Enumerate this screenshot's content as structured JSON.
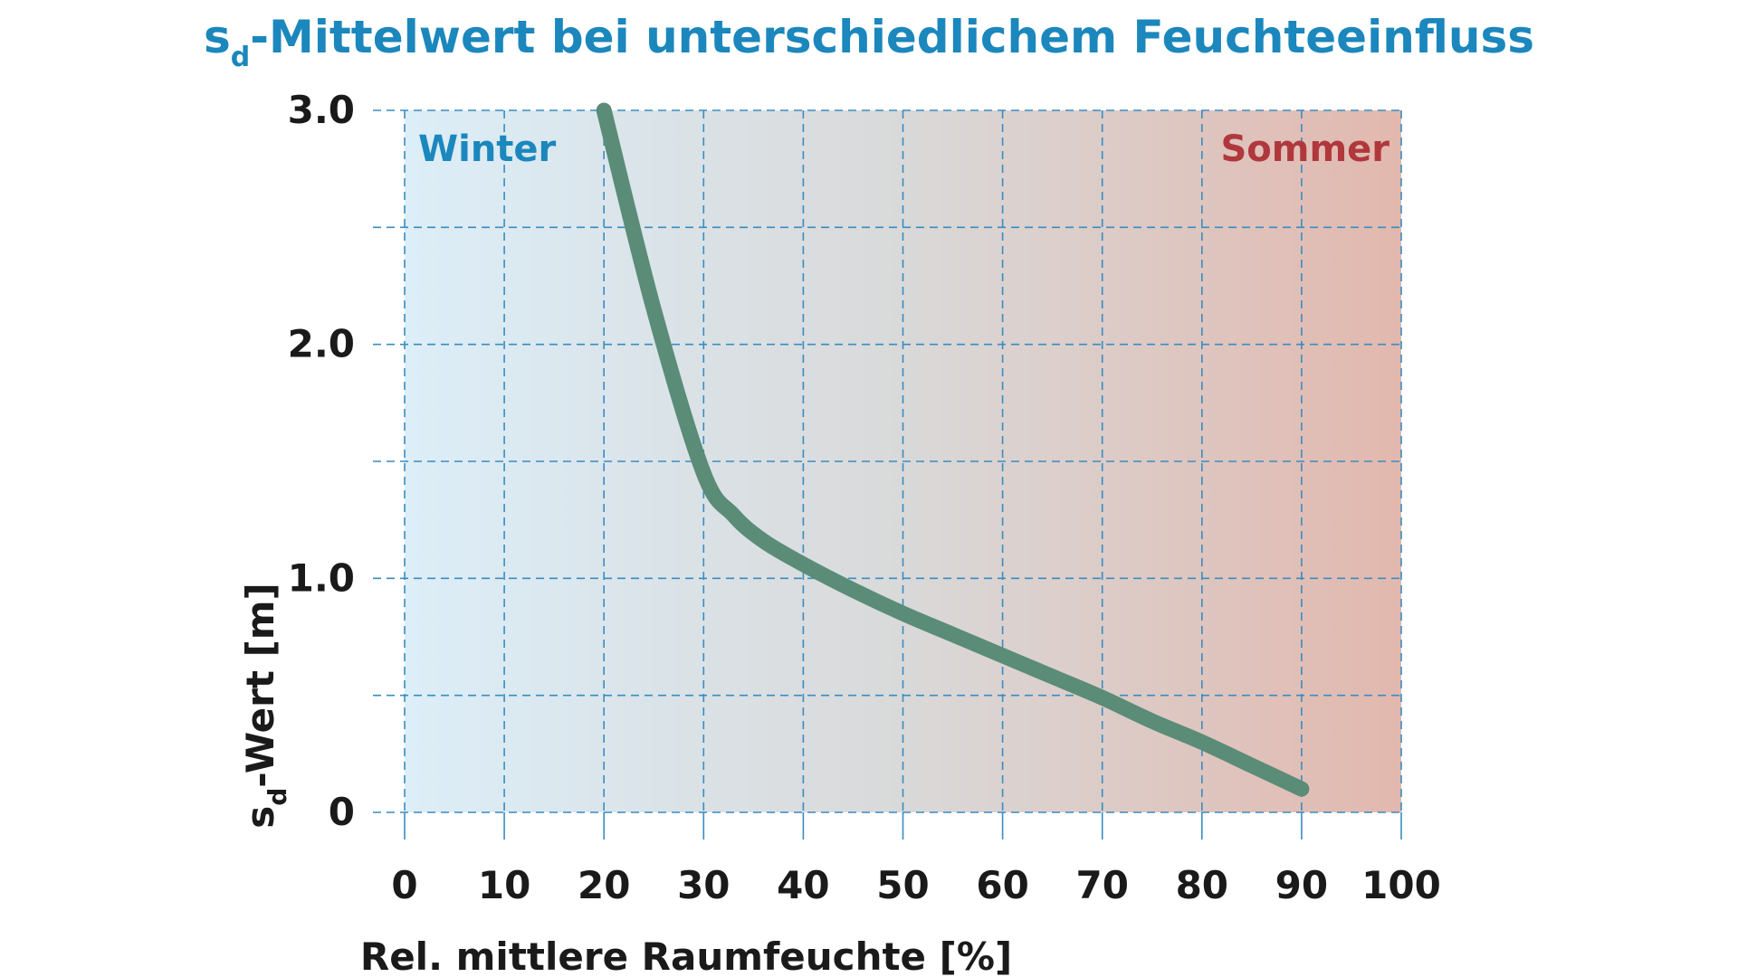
{
  "chart_data": {
    "type": "line",
    "title_main": "s",
    "title_sub": "d",
    "title_rest": "-Mittelwert bei unterschiedlichem Feuchteeinfluss",
    "xlabel": "Rel. mittlere Raumfeuchte [%]",
    "ylabel_main": "s",
    "ylabel_sub": "d",
    "ylabel_rest": "-Wert [m]",
    "xlim": [
      0,
      100
    ],
    "ylim": [
      0,
      3.0
    ],
    "x_ticks": [
      0,
      10,
      20,
      30,
      40,
      50,
      60,
      70,
      80,
      90,
      100
    ],
    "x_tick_labels": [
      "0",
      "10",
      "20",
      "30",
      "40",
      "50",
      "60",
      "70",
      "80",
      "90",
      "100"
    ],
    "y_ticks": [
      0,
      1.0,
      2.0,
      3.0
    ],
    "y_tick_labels": [
      "0",
      "1.0",
      "2.0",
      "3.0"
    ],
    "grid": true,
    "grid_style": "dashed",
    "annotations": [
      {
        "text": "Winter",
        "position": "top-left",
        "color": "#1b87bd"
      },
      {
        "text": "Sommer",
        "position": "top-right",
        "color": "#b0383c"
      }
    ],
    "background_gradient": [
      "#dceef8",
      "#d9d9d9",
      "#e2b8ae"
    ],
    "line_color": "#5a8c78",
    "grid_color": "#3a8cc0",
    "series": [
      {
        "x": [
          20,
          25,
          30,
          33,
          36,
          40,
          45,
          50,
          55,
          60,
          65,
          70,
          75,
          80,
          85,
          90
        ],
        "y": [
          3.0,
          2.15,
          1.45,
          1.27,
          1.16,
          1.06,
          0.95,
          0.85,
          0.76,
          0.67,
          0.58,
          0.49,
          0.39,
          0.3,
          0.2,
          0.1
        ]
      }
    ]
  }
}
